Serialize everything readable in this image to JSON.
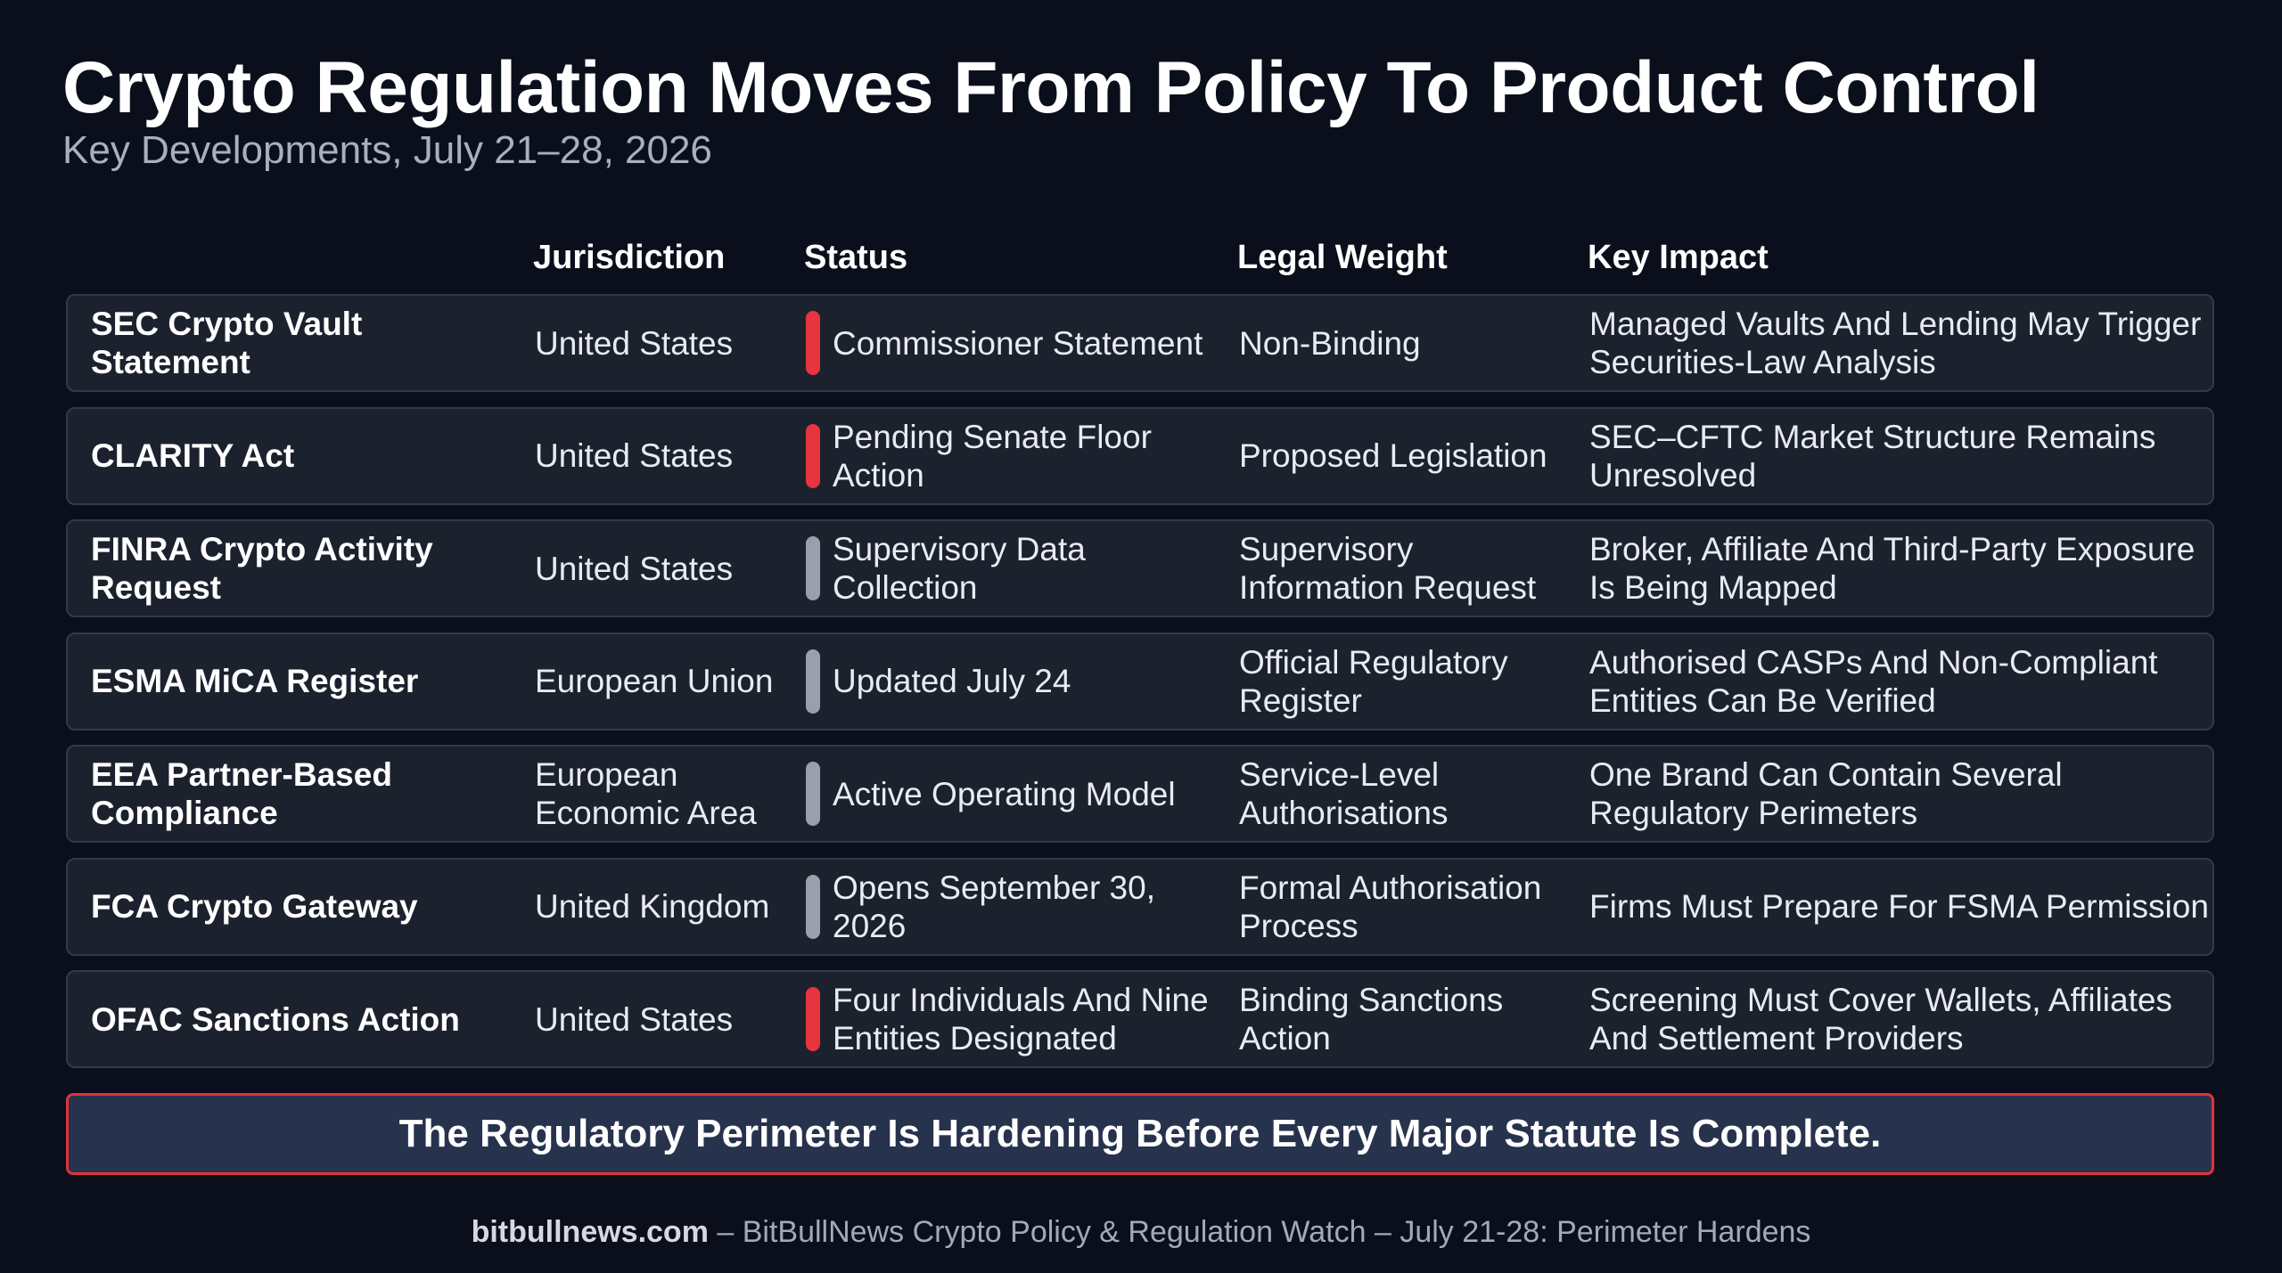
{
  "title": "Crypto Regulation Moves From Policy To Product Control",
  "subtitle": "Key Developments, July 21–28, 2026",
  "columns": {
    "jurisdiction": "Jurisdiction",
    "status": "Status",
    "legal_weight": "Legal Weight",
    "key_impact": "Key Impact"
  },
  "status_colors": {
    "red": "#e8343f",
    "gray": "#9aa0ab"
  },
  "rows": [
    {
      "name": "SEC Crypto Vault Statement",
      "jurisdiction": "United States",
      "status_indicator": "red",
      "status": "Commissioner Statement",
      "legal_weight": "Non-Binding",
      "key_impact": "Managed Vaults And Lending May Trigger Securities-Law Analysis"
    },
    {
      "name": "CLARITY Act",
      "jurisdiction": "United States",
      "status_indicator": "red",
      "status": "Pending Senate Floor Action",
      "legal_weight": "Proposed Legislation",
      "key_impact": "SEC–CFTC Market Structure Remains Unresolved"
    },
    {
      "name": "FINRA Crypto Activity Request",
      "jurisdiction": "United States",
      "status_indicator": "gray",
      "status": "Supervisory Data Collection",
      "legal_weight": "Supervisory Information Request",
      "key_impact": "Broker, Affiliate And Third-Party Exposure Is Being Mapped"
    },
    {
      "name": "ESMA MiCA Register",
      "jurisdiction": "European Union",
      "status_indicator": "gray",
      "status": "Updated July 24",
      "legal_weight": "Official Regulatory Register",
      "key_impact": "Authorised CASPs And Non-Compliant Entities Can Be Verified"
    },
    {
      "name": "EEA Partner-Based Compliance",
      "jurisdiction": "European Economic Area",
      "status_indicator": "gray",
      "status": "Active Operating Model",
      "legal_weight": "Service-Level Authorisations",
      "key_impact": "One Brand Can Contain Several Regulatory Perimeters"
    },
    {
      "name": "FCA Crypto Gateway",
      "jurisdiction": "United Kingdom",
      "status_indicator": "gray",
      "status": "Opens September 30, 2026",
      "legal_weight": "Formal Authorisation Process",
      "key_impact": "Firms Must Prepare For FSMA Permission"
    },
    {
      "name": "OFAC Sanctions Action",
      "jurisdiction": "United States",
      "status_indicator": "red",
      "status": "Four Individuals And Nine Entities Designated",
      "legal_weight": "Binding Sanctions Action",
      "key_impact": "Screening Must Cover Wallets, Affiliates And Settlement Providers"
    }
  ],
  "banner": "The Regulatory Perimeter Is Hardening Before Every Major Statute Is Complete.",
  "footer": {
    "site": "bitbullnews.com",
    "text": " – BitBullNews Crypto Policy & Regulation Watch – July 21-28: Perimeter Hardens"
  }
}
